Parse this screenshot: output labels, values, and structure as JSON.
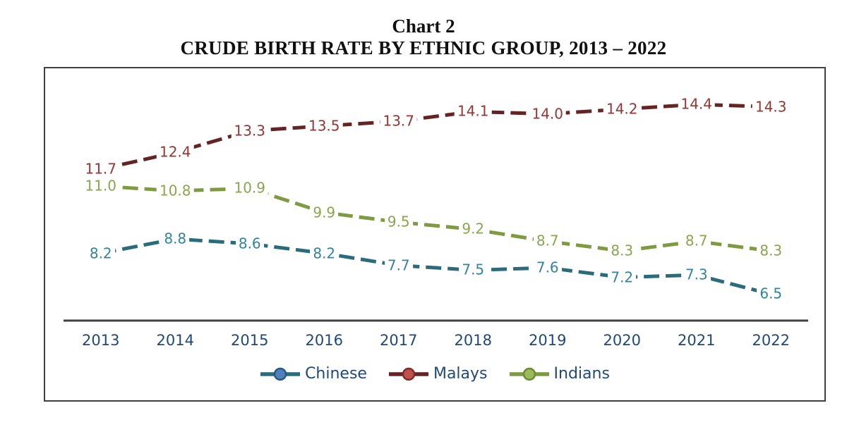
{
  "title": {
    "line1": "Chart 2",
    "line2": "CRUDE BIRTH RATE BY ETHNIC GROUP, 2013 – 2022"
  },
  "colors": {
    "frame_border": "#3f3f3f",
    "axis_line": "#404040",
    "axis_text": "#1F497D",
    "legend_text": "#1F497D",
    "title_text": "#111111"
  },
  "chart_data": {
    "type": "line",
    "title": "CRUDE BIRTH RATE BY ETHNIC GROUP, 2013 – 2022",
    "x": [
      "2013",
      "2014",
      "2015",
      "2016",
      "2017",
      "2018",
      "2019",
      "2020",
      "2021",
      "2022"
    ],
    "series": [
      {
        "name": "Chinese",
        "values": [
          8.2,
          8.8,
          8.6,
          8.2,
          7.7,
          7.5,
          7.6,
          7.2,
          7.3,
          6.5
        ],
        "line_color": "#2A6B7C",
        "label_color": "#31849B",
        "marker_fill": "#4F81BD",
        "marker_border": "#2A5784"
      },
      {
        "name": "Malays",
        "values": [
          11.7,
          12.4,
          13.3,
          13.5,
          13.7,
          14.1,
          14.0,
          14.2,
          14.4,
          14.3
        ],
        "line_color": "#632423",
        "label_color": "#943634",
        "marker_fill": "#C0504D",
        "marker_border": "#7E2D2B"
      },
      {
        "name": "Indians",
        "values": [
          11.0,
          10.8,
          10.9,
          9.9,
          9.5,
          9.2,
          8.7,
          8.3,
          8.7,
          8.3
        ],
        "line_color": "#7E9B42",
        "label_color": "#89A54E",
        "marker_fill": "#9BBB59",
        "marker_border": "#6E8A39"
      }
    ],
    "xlabel": "",
    "ylabel": "",
    "ylim": [
      5.4,
      15.9
    ],
    "grid": false,
    "data_labels": true,
    "line_style": "dashed",
    "legend_position": "bottom",
    "y_axis_visible": false
  }
}
